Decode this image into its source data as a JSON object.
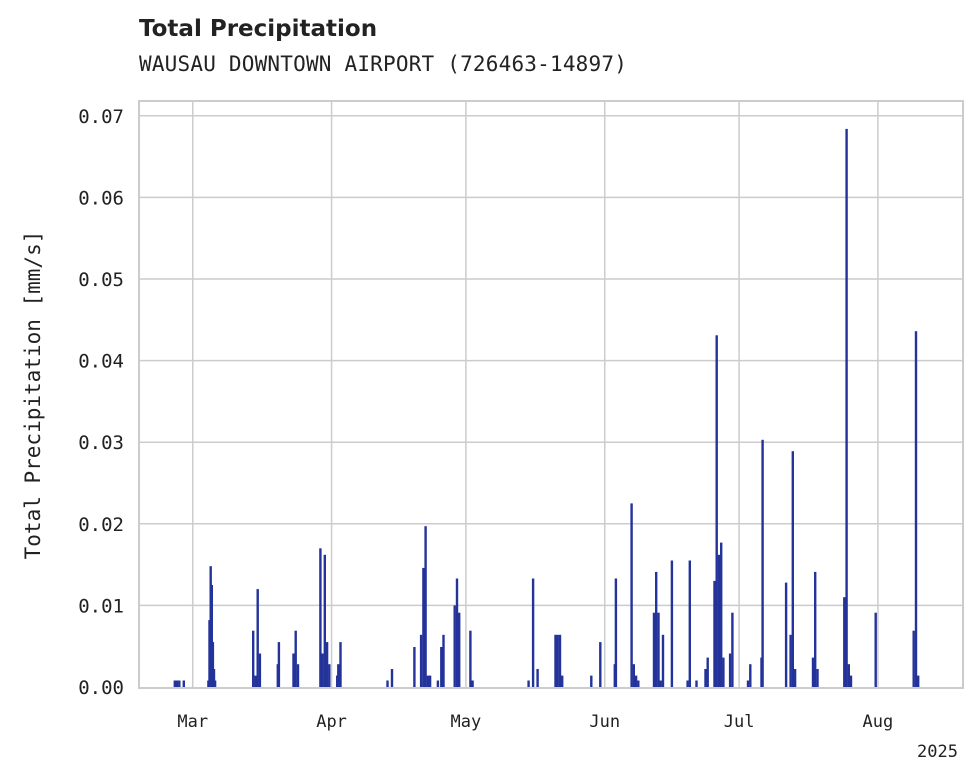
{
  "chart_data": {
    "type": "bar",
    "title": "Total Precipitation",
    "subtitle": "WAUSAU DOWNTOWN AIRPORT (726463-14897)",
    "ylabel": "Total Precipitation [mm/s]",
    "xlabel": "",
    "year_label": "2025",
    "ylim": [
      0,
      0.072
    ],
    "yticks": [
      "0.00",
      "0.01",
      "0.02",
      "0.03",
      "0.04",
      "0.05",
      "0.06",
      "0.07"
    ],
    "xlim": [
      "2025-02-17",
      "2025-08-20"
    ],
    "xticks": [
      {
        "date": "2025-03-01",
        "label": "Mar"
      },
      {
        "date": "2025-04-01",
        "label": "Apr"
      },
      {
        "date": "2025-05-01",
        "label": "May"
      },
      {
        "date": "2025-06-01",
        "label": "Jun"
      },
      {
        "date": "2025-07-01",
        "label": "Jul"
      },
      {
        "date": "2025-08-01",
        "label": "Aug"
      }
    ],
    "grid": true,
    "color": "#23339a",
    "points": [
      [
        "2025-02-25T00",
        0.0008
      ],
      [
        "2025-02-25T12",
        0.0008
      ],
      [
        "2025-02-26T00",
        0.0008
      ],
      [
        "2025-02-27T00",
        0.0008
      ],
      [
        "2025-03-04T12",
        0.0008
      ],
      [
        "2025-03-04T18",
        0.0082
      ],
      [
        "2025-03-05T00",
        0.0148
      ],
      [
        "2025-03-05T06",
        0.0125
      ],
      [
        "2025-03-05T12",
        0.0055
      ],
      [
        "2025-03-05T18",
        0.0022
      ],
      [
        "2025-03-06T00",
        0.0008
      ],
      [
        "2025-03-14T12",
        0.0069
      ],
      [
        "2025-03-15T00",
        0.0014
      ],
      [
        "2025-03-15T12",
        0.012
      ],
      [
        "2025-03-16T00",
        0.0041
      ],
      [
        "2025-03-20T00",
        0.0028
      ],
      [
        "2025-03-20T06",
        0.0055
      ],
      [
        "2025-03-23T12",
        0.0041
      ],
      [
        "2025-03-24T00",
        0.0069
      ],
      [
        "2025-03-24T12",
        0.0028
      ],
      [
        "2025-03-29T12",
        0.017
      ],
      [
        "2025-03-30T00",
        0.0041
      ],
      [
        "2025-03-30T12",
        0.0162
      ],
      [
        "2025-03-31T00",
        0.0055
      ],
      [
        "2025-03-31T12",
        0.0028
      ],
      [
        "2025-04-02T06",
        0.0014
      ],
      [
        "2025-04-02T12",
        0.0028
      ],
      [
        "2025-04-03T00",
        0.0055
      ],
      [
        "2025-04-13T12",
        0.0008
      ],
      [
        "2025-04-14T12",
        0.0022
      ],
      [
        "2025-04-19T12",
        0.0049
      ],
      [
        "2025-04-21T00",
        0.0064
      ],
      [
        "2025-04-21T12",
        0.0146
      ],
      [
        "2025-04-22T00",
        0.0197
      ],
      [
        "2025-04-22T12",
        0.0014
      ],
      [
        "2025-04-23T00",
        0.0014
      ],
      [
        "2025-04-24T18",
        0.0008
      ],
      [
        "2025-04-25T12",
        0.0049
      ],
      [
        "2025-04-26T00",
        0.0064
      ],
      [
        "2025-04-28T12",
        0.01
      ],
      [
        "2025-04-29T00",
        0.0133
      ],
      [
        "2025-04-29T12",
        0.0091
      ],
      [
        "2025-05-02T00",
        0.0069
      ],
      [
        "2025-05-02T12",
        0.0008
      ],
      [
        "2025-05-15T00",
        0.0008
      ],
      [
        "2025-05-16T00",
        0.0133
      ],
      [
        "2025-05-17T00",
        0.0022
      ],
      [
        "2025-05-21T00",
        0.0064
      ],
      [
        "2025-05-21T12",
        0.0064
      ],
      [
        "2025-05-22T00",
        0.0064
      ],
      [
        "2025-05-22T12",
        0.0014
      ],
      [
        "2025-05-29T00",
        0.0014
      ],
      [
        "2025-05-31T00",
        0.0055
      ],
      [
        "2025-06-03T06",
        0.0028
      ],
      [
        "2025-06-03T12",
        0.0133
      ],
      [
        "2025-06-07T00",
        0.0225
      ],
      [
        "2025-06-07T12",
        0.0028
      ],
      [
        "2025-06-08T00",
        0.0014
      ],
      [
        "2025-06-08T12",
        0.0008
      ],
      [
        "2025-06-12T00",
        0.0091
      ],
      [
        "2025-06-12T12",
        0.0141
      ],
      [
        "2025-06-13T00",
        0.0091
      ],
      [
        "2025-06-13T12",
        0.0008
      ],
      [
        "2025-06-14T00",
        0.0064
      ],
      [
        "2025-06-16T00",
        0.0155
      ],
      [
        "2025-06-19T12",
        0.0008
      ],
      [
        "2025-06-20T00",
        0.0155
      ],
      [
        "2025-06-21T12",
        0.0008
      ],
      [
        "2025-06-23T12",
        0.0022
      ],
      [
        "2025-06-24T00",
        0.0036
      ],
      [
        "2025-06-25T12",
        0.013
      ],
      [
        "2025-06-26T00",
        0.0431
      ],
      [
        "2025-06-26T12",
        0.0162
      ],
      [
        "2025-06-27T00",
        0.0177
      ],
      [
        "2025-06-27T12",
        0.0036
      ],
      [
        "2025-06-29T00",
        0.0041
      ],
      [
        "2025-06-29T12",
        0.0091
      ],
      [
        "2025-07-03T00",
        0.0008
      ],
      [
        "2025-07-03T12",
        0.0028
      ],
      [
        "2025-07-06T00",
        0.0036
      ],
      [
        "2025-07-06T06",
        0.0303
      ],
      [
        "2025-07-11T12",
        0.0128
      ],
      [
        "2025-07-12T12",
        0.0064
      ],
      [
        "2025-07-13T00",
        0.0289
      ],
      [
        "2025-07-13T12",
        0.0022
      ],
      [
        "2025-07-17T12",
        0.0036
      ],
      [
        "2025-07-18T00",
        0.0141
      ],
      [
        "2025-07-18T12",
        0.0022
      ],
      [
        "2025-07-24T12",
        0.011
      ],
      [
        "2025-07-25T00",
        0.0684
      ],
      [
        "2025-07-25T12",
        0.0028
      ],
      [
        "2025-07-26T00",
        0.0014
      ],
      [
        "2025-07-31T12",
        0.0091
      ],
      [
        "2025-08-09T00",
        0.0069
      ],
      [
        "2025-08-09T12",
        0.0436
      ],
      [
        "2025-08-10T00",
        0.0014
      ]
    ]
  }
}
